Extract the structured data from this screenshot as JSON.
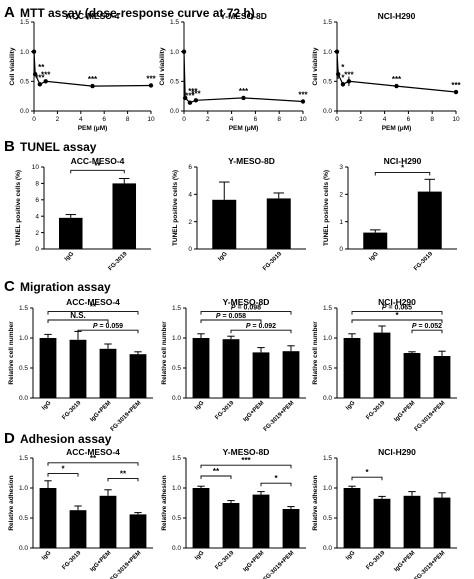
{
  "sections": [
    {
      "letter": "A",
      "title": "MTT assay (dose-response curve at 72 h)"
    },
    {
      "letter": "B",
      "title": "TUNEL assay"
    },
    {
      "letter": "C",
      "title": "Migration assay"
    },
    {
      "letter": "D",
      "title": "Adhesion assay"
    }
  ],
  "chart_data": [
    {
      "id": "A1",
      "type": "line",
      "title": "ACC-MESO-4",
      "xlabel": "PEM (μM)",
      "ylabel": "Cell viability",
      "xlim": [
        0,
        10
      ],
      "ylim": [
        0,
        1.5
      ],
      "xticks": [
        0,
        2,
        4,
        6,
        8,
        10
      ],
      "yticks": [
        0.0,
        0.5,
        1.0,
        1.5
      ],
      "x": [
        0,
        0.1,
        0.5,
        1,
        5,
        10
      ],
      "y": [
        1.0,
        0.62,
        0.45,
        0.5,
        0.42,
        0.43
      ],
      "err": [
        0.04,
        0.03,
        0.02,
        0.02,
        0.02,
        0.02
      ],
      "labels": [
        "",
        "**",
        "***",
        "***",
        "***",
        "***"
      ]
    },
    {
      "id": "A2",
      "type": "line",
      "title": "Y-MESO-8D",
      "xlabel": "PEM (μM)",
      "ylabel": "Cell viability",
      "xlim": [
        0,
        10
      ],
      "ylim": [
        0,
        1.5
      ],
      "xticks": [
        0,
        2,
        4,
        6,
        8,
        10
      ],
      "yticks": [
        0.0,
        0.5,
        1.0,
        1.5
      ],
      "x": [
        0,
        0.1,
        0.5,
        1,
        5,
        10
      ],
      "y": [
        1.0,
        0.22,
        0.14,
        0.18,
        0.22,
        0.16
      ],
      "err": [
        0.04,
        0.03,
        0.02,
        0.02,
        0.02,
        0.02
      ],
      "labels": [
        "",
        "***",
        "***",
        "***",
        "***",
        "***"
      ]
    },
    {
      "id": "A3",
      "type": "line",
      "title": "NCI-H290",
      "xlabel": "PEM (μM)",
      "ylabel": "Cell viability",
      "xlim": [
        0,
        10
      ],
      "ylim": [
        0,
        1.5
      ],
      "xticks": [
        0,
        2,
        4,
        6,
        8,
        10
      ],
      "yticks": [
        0.0,
        0.5,
        1.0,
        1.5
      ],
      "x": [
        0,
        0.1,
        0.5,
        1,
        5,
        10
      ],
      "y": [
        1.0,
        0.62,
        0.45,
        0.5,
        0.42,
        0.32
      ],
      "err": [
        0.1,
        0.08,
        0.04,
        0.08,
        0.02,
        0.02
      ],
      "labels": [
        "",
        "*",
        "*",
        "***",
        "***",
        "***"
      ]
    },
    {
      "id": "B1",
      "type": "bar",
      "title": "ACC-MESO-4",
      "ylabel": "TUNEL positive cells (%)",
      "categories": [
        "IgG",
        "FG-3019"
      ],
      "values": [
        3.8,
        8.0
      ],
      "err": [
        0.4,
        0.6
      ],
      "ylim": [
        0,
        10
      ],
      "yticks": [
        0,
        2,
        4,
        6,
        8,
        10
      ],
      "sig": [
        {
          "from": 0,
          "to": 1,
          "label": "**",
          "y": 9.6
        }
      ]
    },
    {
      "id": "B2",
      "type": "bar",
      "title": "Y-MESO-8D",
      "ylabel": "TUNEL positive cells (%)",
      "categories": [
        "IgG",
        "FG-3019"
      ],
      "values": [
        3.6,
        3.7
      ],
      "err": [
        1.3,
        0.4
      ],
      "ylim": [
        0,
        6
      ],
      "yticks": [
        0,
        2,
        4,
        6
      ],
      "sig": []
    },
    {
      "id": "B3",
      "type": "bar",
      "title": "NCI-H290",
      "ylabel": "TUNEL positive cells (%)",
      "categories": [
        "IgG",
        "FG-3019"
      ],
      "values": [
        0.6,
        2.1
      ],
      "err": [
        0.1,
        0.45
      ],
      "ylim": [
        0,
        3
      ],
      "yticks": [
        0,
        1,
        2,
        3
      ],
      "sig": [
        {
          "from": 0,
          "to": 1,
          "label": "*",
          "y": 2.8
        }
      ]
    },
    {
      "id": "C1",
      "type": "bar",
      "title": "ACC-MESO-4",
      "ylabel": "Relative cell number",
      "categories": [
        "IgG",
        "FG-3019",
        "IgG+PEM",
        "FG-3019+PEM"
      ],
      "values": [
        1.0,
        0.97,
        0.82,
        0.73
      ],
      "err": [
        0.06,
        0.14,
        0.08,
        0.04
      ],
      "ylim": [
        0,
        1.5
      ],
      "yticks": [
        0.0,
        0.5,
        1.0,
        1.5
      ],
      "sig": [
        {
          "from": 0,
          "to": 3,
          "label": "**",
          "y": 1.44
        },
        {
          "from": 0,
          "to": 2,
          "label": "N.S.",
          "y": 1.3
        },
        {
          "from": 1,
          "to": 3,
          "label": "P = 0.059",
          "y": 1.13
        }
      ]
    },
    {
      "id": "C2",
      "type": "bar",
      "title": "Y-MESO-8D",
      "ylabel": "Relative cell number",
      "categories": [
        "IgG",
        "FG-3019",
        "IgG+PEM",
        "FG-3019+PEM"
      ],
      "values": [
        1.0,
        0.98,
        0.76,
        0.78
      ],
      "err": [
        0.07,
        0.05,
        0.08,
        0.09
      ],
      "ylim": [
        0,
        1.5
      ],
      "yticks": [
        0.0,
        0.5,
        1.0,
        1.5
      ],
      "sig": [
        {
          "from": 0,
          "to": 3,
          "label": "P = 0.098",
          "y": 1.44
        },
        {
          "from": 0,
          "to": 2,
          "label": "P = 0.058",
          "y": 1.3
        },
        {
          "from": 1,
          "to": 3,
          "label": "P = 0.092",
          "y": 1.13
        }
      ]
    },
    {
      "id": "C3",
      "type": "bar",
      "title": "NCI-H290",
      "ylabel": "Relative cell number",
      "categories": [
        "IgG",
        "FG-3019",
        "IgG+PEM",
        "FG-3019+PEM"
      ],
      "values": [
        1.0,
        1.09,
        0.75,
        0.7
      ],
      "err": [
        0.07,
        0.11,
        0.02,
        0.08
      ],
      "ylim": [
        0,
        1.5
      ],
      "yticks": [
        0.0,
        0.5,
        1.0,
        1.5
      ],
      "sig": [
        {
          "from": 0,
          "to": 3,
          "label": "P = 0.065",
          "y": 1.44
        },
        {
          "from": 0,
          "to": 3,
          "label": "*",
          "y": 1.3
        },
        {
          "from": 2,
          "to": 3,
          "label": "P = 0.052",
          "y": 1.13
        }
      ]
    },
    {
      "id": "D1",
      "type": "bar",
      "title": "ACC-MESO-4",
      "ylabel": "Relative adhesion",
      "categories": [
        "IgG",
        "FG-3019",
        "IgG+PEM",
        "FG-3019+PEM"
      ],
      "values": [
        1.0,
        0.63,
        0.87,
        0.56
      ],
      "err": [
        0.12,
        0.07,
        0.1,
        0.03
      ],
      "ylim": [
        0,
        1.5
      ],
      "yticks": [
        0.0,
        0.5,
        1.0,
        1.5
      ],
      "sig": [
        {
          "from": 0,
          "to": 3,
          "label": "**",
          "y": 1.42
        },
        {
          "from": 0,
          "to": 1,
          "label": "*",
          "y": 1.24
        },
        {
          "from": 2,
          "to": 3,
          "label": "**",
          "y": 1.16
        }
      ]
    },
    {
      "id": "D2",
      "type": "bar",
      "title": "Y-MESO-8D",
      "ylabel": "Relative adhesion",
      "categories": [
        "IgG",
        "FG-3019",
        "IgG+PEM",
        "FG-3019+PEM"
      ],
      "values": [
        1.0,
        0.75,
        0.89,
        0.65
      ],
      "err": [
        0.03,
        0.04,
        0.05,
        0.04
      ],
      "ylim": [
        0,
        1.5
      ],
      "yticks": [
        0.0,
        0.5,
        1.0,
        1.5
      ],
      "sig": [
        {
          "from": 0,
          "to": 3,
          "label": "***",
          "y": 1.38
        },
        {
          "from": 0,
          "to": 1,
          "label": "**",
          "y": 1.2
        },
        {
          "from": 2,
          "to": 3,
          "label": "*",
          "y": 1.08
        }
      ]
    },
    {
      "id": "D3",
      "type": "bar",
      "title": "NCI-H290",
      "ylabel": "Relative adhesion",
      "categories": [
        "IgG",
        "FG-3019",
        "IgG+PEM",
        "FG-3019+PEM"
      ],
      "values": [
        1.0,
        0.82,
        0.87,
        0.84
      ],
      "err": [
        0.03,
        0.04,
        0.07,
        0.08
      ],
      "ylim": [
        0,
        1.5
      ],
      "yticks": [
        0.0,
        0.5,
        1.0,
        1.5
      ],
      "sig": [
        {
          "from": 0,
          "to": 1,
          "label": "*",
          "y": 1.18
        }
      ]
    }
  ]
}
